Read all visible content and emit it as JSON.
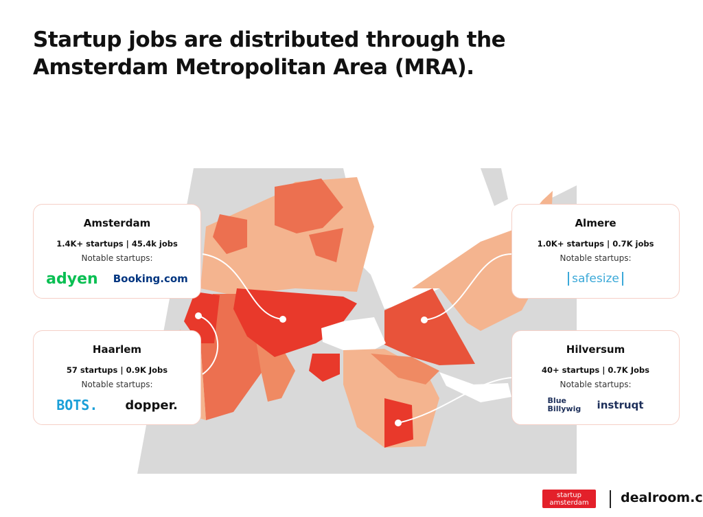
{
  "header": {
    "title": "Startup jobs are distributed through the Amsterdam Metropolitan Area (MRA)."
  },
  "cards": [
    {
      "city": "Amsterdam",
      "stats": "1.4K+ startups | 45.4k jobs",
      "label": "Notable startups:",
      "startups": [
        "adyen",
        "Booking.com"
      ]
    },
    {
      "city": "Haarlem",
      "stats": "57 startups | 0.9K Jobs",
      "label": "Notable startups:",
      "startups": [
        "BOTS.",
        "dopper."
      ]
    },
    {
      "city": "Almere",
      "stats": "1.0K+ startups | 0.7K jobs",
      "label": "Notable startups:",
      "startups": [
        "safesize"
      ]
    },
    {
      "city": "Hilversum",
      "stats": "40+ startups | 0.7K Jobs",
      "label": "Notable startups:",
      "startups": [
        "Blue Billywig",
        "instruqt"
      ]
    }
  ],
  "footer": {
    "partner": "startup amsterdam",
    "brand": "dealroom.co"
  }
}
